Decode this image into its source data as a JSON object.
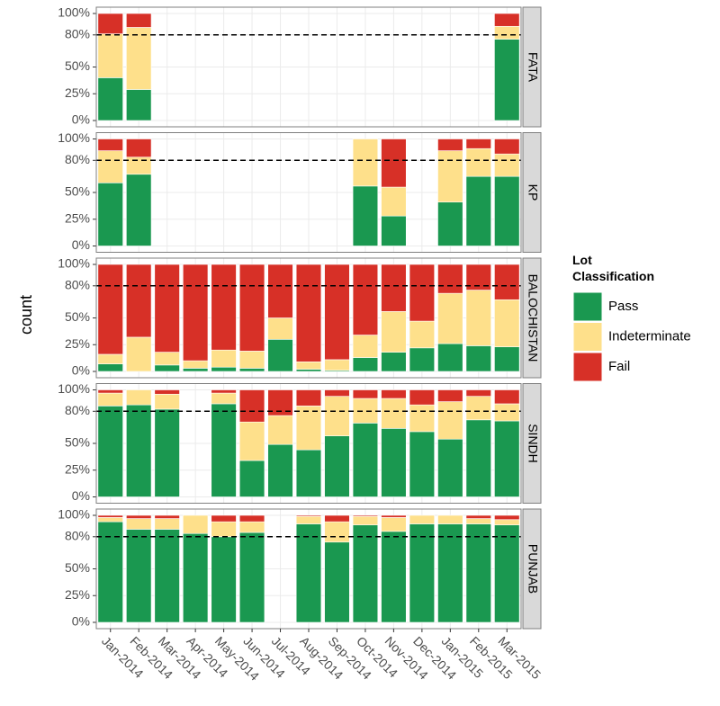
{
  "chart_data": {
    "type": "bar",
    "stacked": true,
    "ylabel": "count",
    "legend_title": "Lot Classification",
    "legend_position": "right",
    "grid": true,
    "reference_line": 80,
    "categories": [
      "Jan-2014",
      "Feb-2014",
      "Mar-2014",
      "Apr-2014",
      "May-2014",
      "Jun-2014",
      "Jul-2014",
      "Aug-2014",
      "Sep-2014",
      "Oct-2014",
      "Nov-2014",
      "Dec-2014",
      "Jan-2015",
      "Feb-2015",
      "Mar-2015"
    ],
    "facets": [
      "FATA",
      "KP",
      "BALOCHISTAN",
      "SINDH",
      "PUNJAB"
    ],
    "ylim": [
      0,
      100
    ],
    "yticks": [
      {
        "value": 0,
        "label": "0%"
      },
      {
        "value": 25,
        "label": "25%"
      },
      {
        "value": 50,
        "label": "50%"
      },
      {
        "value": 80,
        "label": "80%"
      },
      {
        "value": 100,
        "label": "100%"
      }
    ],
    "series": [
      {
        "name": "Pass",
        "color": "#1a9850",
        "values": [
          [
            40,
            29,
            null,
            null,
            null,
            null,
            null,
            null,
            null,
            null,
            null,
            null,
            null,
            null,
            76
          ],
          [
            59,
            67,
            null,
            null,
            null,
            null,
            null,
            null,
            null,
            56,
            28,
            null,
            41,
            65,
            65
          ],
          [
            7,
            0,
            6,
            3,
            4,
            3,
            30,
            2,
            1,
            13,
            18,
            22,
            26,
            24,
            23
          ],
          [
            85,
            86,
            82,
            null,
            87,
            34,
            49,
            44,
            57,
            69,
            64,
            61,
            54,
            72,
            71
          ],
          [
            94,
            87,
            87,
            83,
            80,
            84,
            null,
            92,
            75,
            91,
            85,
            92,
            92,
            92,
            91
          ]
        ]
      },
      {
        "name": "Indeterminate",
        "color": "#fee08b",
        "values": [
          [
            41,
            58,
            null,
            null,
            null,
            null,
            null,
            null,
            null,
            null,
            null,
            null,
            null,
            null,
            12
          ],
          [
            30,
            16,
            null,
            null,
            null,
            null,
            null,
            null,
            null,
            44,
            27,
            null,
            48,
            26,
            21
          ],
          [
            9,
            32,
            12,
            7,
            16,
            16,
            20,
            7,
            10,
            21,
            38,
            25,
            47,
            52,
            44
          ],
          [
            12,
            14,
            14,
            null,
            10,
            36,
            27,
            41,
            37,
            23,
            28,
            25,
            35,
            22,
            16
          ],
          [
            4,
            10,
            10,
            17,
            14,
            10,
            null,
            7,
            19,
            8,
            13,
            8,
            8,
            5,
            5
          ]
        ]
      },
      {
        "name": "Fail",
        "color": "#d73027",
        "values": [
          [
            19,
            13,
            null,
            null,
            null,
            null,
            null,
            null,
            null,
            null,
            null,
            null,
            null,
            null,
            12
          ],
          [
            11,
            17,
            null,
            null,
            null,
            null,
            null,
            null,
            null,
            0,
            45,
            null,
            11,
            9,
            14
          ],
          [
            84,
            68,
            82,
            90,
            80,
            81,
            50,
            91,
            89,
            66,
            44,
            53,
            27,
            24,
            33
          ],
          [
            3,
            0,
            4,
            null,
            3,
            30,
            24,
            15,
            6,
            8,
            8,
            14,
            11,
            6,
            13
          ],
          [
            2,
            3,
            3,
            0,
            6,
            6,
            null,
            1,
            6,
            1,
            2,
            0,
            0,
            3,
            4
          ]
        ]
      }
    ]
  }
}
